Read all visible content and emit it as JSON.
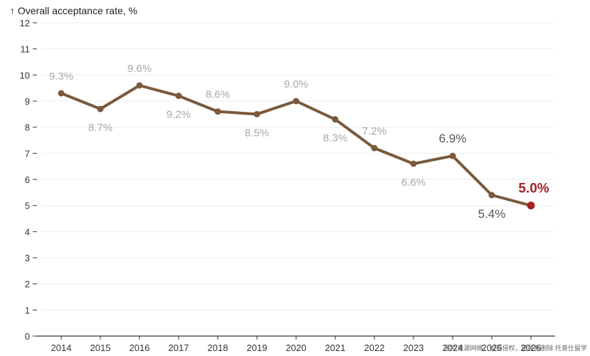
{
  "chart_data": {
    "type": "line",
    "ylabel": "↑ Overall acceptance rate, %",
    "x": [
      2014,
      2015,
      2016,
      2017,
      2018,
      2019,
      2020,
      2021,
      2022,
      2023,
      2024,
      2025,
      2026
    ],
    "values": [
      9.3,
      8.7,
      9.6,
      9.2,
      8.6,
      8.5,
      9.0,
      8.3,
      7.2,
      6.6,
      6.9,
      5.4,
      5.0
    ],
    "data_labels": [
      "9.3%",
      "8.7%",
      "9.6%",
      "9.2%",
      "8.6%",
      "8.5%",
      "9.0%",
      "8.3%",
      "7.2%",
      "6.6%",
      "6.9%",
      "5.4%",
      "5.0%"
    ],
    "yticks": [
      0,
      1,
      2,
      3,
      4,
      5,
      6,
      7,
      8,
      9,
      10,
      11,
      12
    ],
    "ylim": [
      0,
      12
    ],
    "grid": "horizontal",
    "colors": {
      "line": "#7a5a3c",
      "highlight": "#a32424",
      "label": "#a8a8a8",
      "label_emphasis": "#555555",
      "grid": "#eeeeee"
    }
  },
  "watermark": "图片来源网络，如有侵权，请联系删除 托普仕留学"
}
